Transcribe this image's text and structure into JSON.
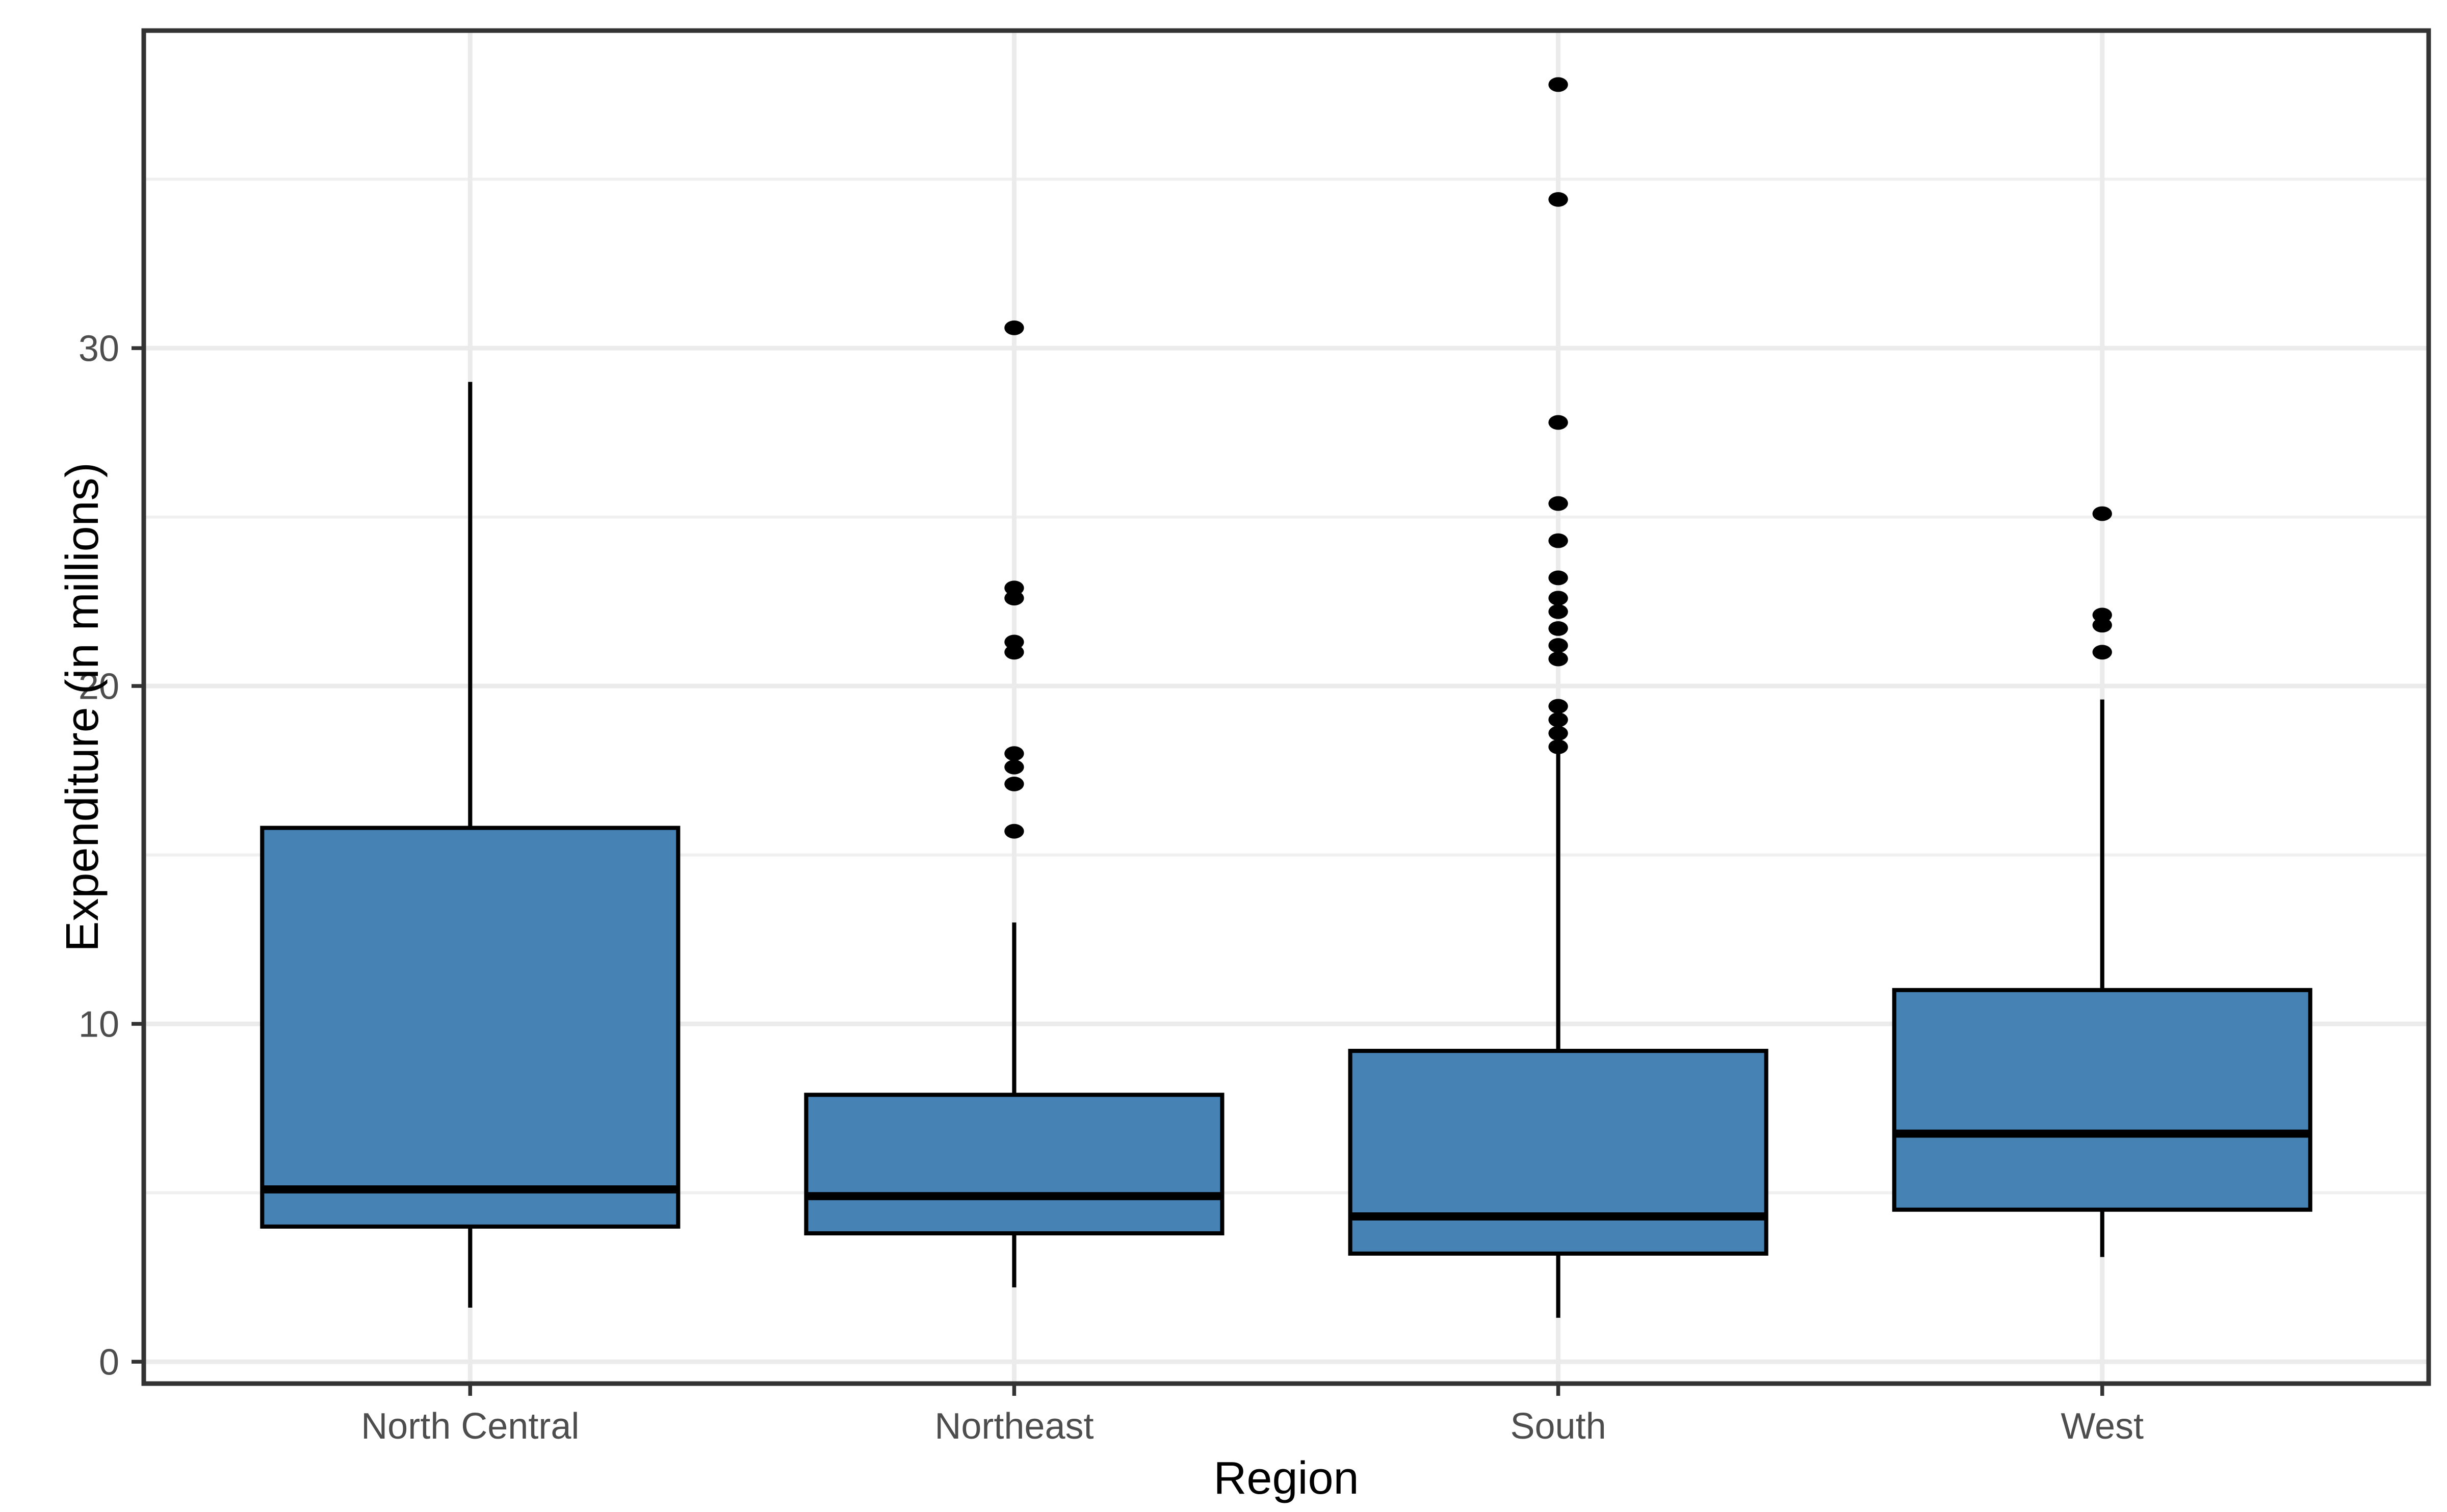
{
  "figure": {
    "background_color": "#FFFFFF",
    "panel_background_color": "#FFFFFF",
    "panel_border_color": "#333333",
    "grid_major_color": "#EBEBEB",
    "grid_minor_color": "#F0F0F0",
    "tick_mark_color": "#333333",
    "tick_label_color": "#4D4D4D",
    "axis_title_color": "#000000",
    "box_fill_color": "#4682B4",
    "box_stroke_color": "#000000",
    "outlier_color": "#000000"
  },
  "chart_data": {
    "type": "boxplot",
    "title": "",
    "xlabel": "Region",
    "ylabel": "Expenditure (in millions)",
    "categories": [
      "North Central",
      "Northeast",
      "South",
      "West"
    ],
    "y_axis": {
      "ticks": [
        0,
        10,
        20,
        30
      ],
      "minor_gridlines": [
        5,
        15,
        25,
        35
      ],
      "range": [
        -0.7,
        39.9
      ],
      "grid": true
    },
    "x_axis": {
      "grid": true
    },
    "legend": "none",
    "series": [
      {
        "category": "North Central",
        "whisker_low": 1.6,
        "q1": 4.0,
        "median": 5.1,
        "q3": 15.8,
        "whisker_high": 29.0,
        "outliers": []
      },
      {
        "category": "Northeast",
        "whisker_low": 2.2,
        "q1": 3.8,
        "median": 4.9,
        "q3": 7.9,
        "whisker_high": 13.0,
        "outliers": [
          15.7,
          17.1,
          17.6,
          18.0,
          21.0,
          21.3,
          22.6,
          22.9,
          30.6
        ]
      },
      {
        "category": "South",
        "whisker_low": 1.3,
        "q1": 3.2,
        "median": 4.3,
        "q3": 9.2,
        "whisker_high": 18.0,
        "outliers": [
          18.2,
          18.6,
          19.0,
          19.4,
          20.8,
          21.2,
          21.7,
          22.2,
          22.6,
          23.2,
          24.3,
          25.4,
          27.8,
          34.4,
          37.8
        ]
      },
      {
        "category": "West",
        "whisker_low": 3.1,
        "q1": 4.5,
        "median": 6.75,
        "q3": 11.0,
        "whisker_high": 19.6,
        "outliers": [
          21.0,
          21.8,
          22.1,
          25.1
        ]
      }
    ]
  }
}
